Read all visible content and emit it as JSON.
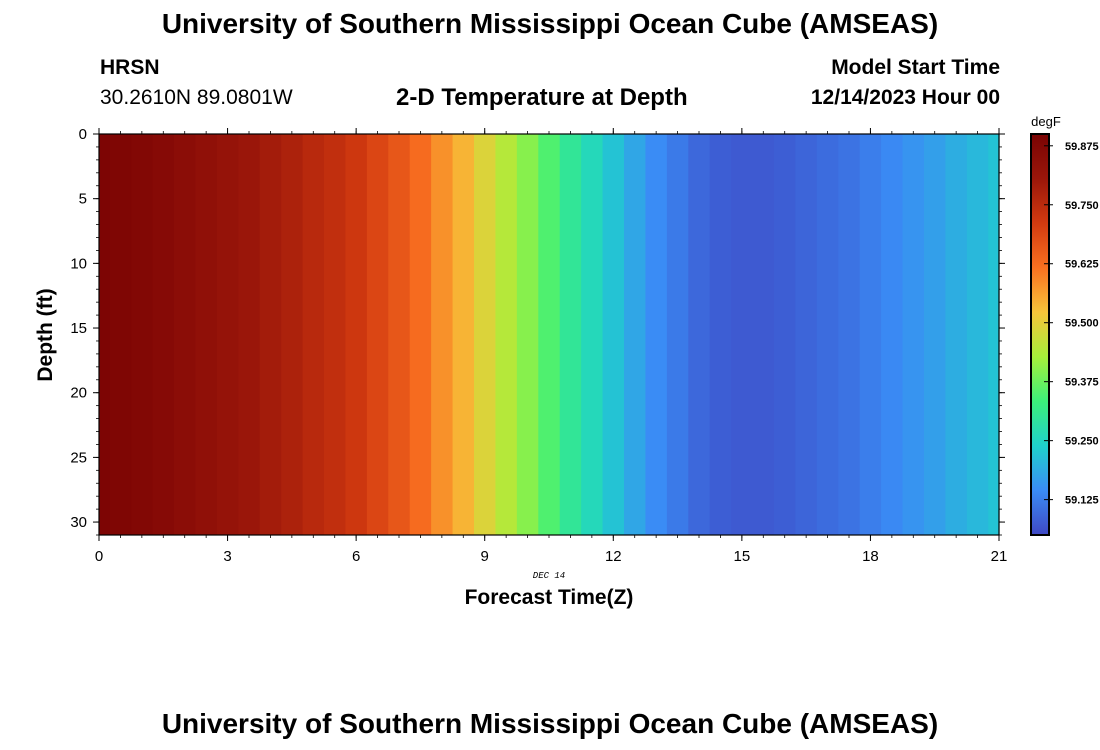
{
  "header": {
    "title": "University of Southern Mississippi Ocean Cube (AMSEAS)",
    "station": "HRSN",
    "coordinates": "30.2610N  89.0801W",
    "plot_title": "2-D Temperature at Depth",
    "model_start_label": "Model Start Time",
    "model_start_value": "12/14/2023 Hour 00"
  },
  "footer": {
    "title": "University of Southern Mississippi Ocean Cube (AMSEAS)"
  },
  "chart_data": {
    "type": "heatmap",
    "title": "2-D Temperature at Depth",
    "xlabel": "Forecast Time(Z)",
    "ylabel": "Depth (ft)",
    "date_label": "DEC 14",
    "xlim": [
      0,
      21
    ],
    "ylim": [
      31,
      0
    ],
    "x_ticks": [
      0,
      3,
      6,
      9,
      12,
      15,
      18,
      21
    ],
    "y_ticks": [
      0,
      5,
      10,
      15,
      20,
      25,
      30
    ],
    "x": [
      0,
      0.5,
      1,
      1.5,
      2,
      2.5,
      3,
      3.5,
      4,
      4.5,
      5,
      5.5,
      6,
      6.5,
      7,
      7.5,
      8,
      8.5,
      9,
      9.5,
      10,
      10.5,
      11,
      11.5,
      12,
      12.5,
      13,
      13.5,
      14,
      14.5,
      15,
      15.5,
      16,
      16.5,
      17,
      17.5,
      18,
      18.5,
      19,
      19.5,
      20,
      20.5,
      21
    ],
    "temperature_by_time": [
      59.89,
      59.885,
      59.875,
      59.865,
      59.85,
      59.835,
      59.82,
      59.805,
      59.79,
      59.775,
      59.755,
      59.74,
      59.72,
      59.69,
      59.66,
      59.625,
      59.58,
      59.54,
      59.49,
      59.445,
      59.4,
      59.35,
      59.3,
      59.26,
      59.22,
      59.18,
      59.145,
      59.12,
      59.095,
      59.08,
      59.075,
      59.075,
      59.08,
      59.09,
      59.1,
      59.11,
      59.125,
      59.14,
      59.155,
      59.17,
      59.19,
      59.205,
      59.22
    ],
    "colorbar": {
      "unit": "degF",
      "min": 59.05,
      "max": 59.9,
      "ticks": [
        "59.875",
        "59.750",
        "59.625",
        "59.500",
        "59.375",
        "59.250",
        "59.125"
      ],
      "colors": [
        "#3f48c4",
        "#3a8cf5",
        "#1fd1cc",
        "#3cf07a",
        "#a6f03a",
        "#f7c43a",
        "#f97020",
        "#d23a10",
        "#9a160a",
        "#7a0303"
      ]
    }
  }
}
